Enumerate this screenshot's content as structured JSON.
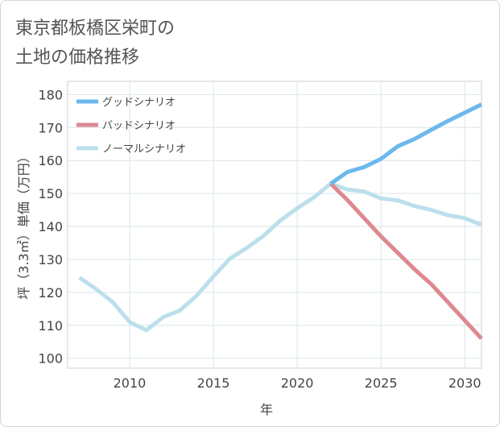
{
  "chart_data": {
    "type": "line",
    "title_lines": [
      "東京都板橋区栄町の",
      "土地の価格推移"
    ],
    "xlabel": "年",
    "ylabel": "坪（3.3㎡）単価（万円）",
    "xlim": [
      2006.3,
      2031
    ],
    "ylim": [
      97,
      184
    ],
    "x_ticks": [
      2010,
      2015,
      2020,
      2025,
      2030
    ],
    "y_ticks": [
      100,
      110,
      120,
      130,
      140,
      150,
      160,
      170,
      180
    ],
    "grid": true,
    "legend_position": "top-left",
    "series": [
      {
        "name": "グッドシナリオ",
        "color": "#6bb8ec",
        "x": [
          2022,
          2023,
          2024,
          2025,
          2026,
          2027,
          2028,
          2029,
          2030,
          2031
        ],
        "y": [
          153,
          156.5,
          158,
          160.5,
          164.3,
          166.5,
          169.3,
          172,
          174.5,
          177
        ]
      },
      {
        "name": "バッドシナリオ",
        "color": "#de8890",
        "x": [
          2022,
          2023,
          2024,
          2025,
          2026,
          2027,
          2028,
          2029,
          2030,
          2031
        ],
        "y": [
          153,
          148,
          142.5,
          137,
          132,
          127,
          122.5,
          117,
          111.5,
          106
        ]
      },
      {
        "name": "ノーマルシナリオ",
        "color": "#bcdfec",
        "x": [
          2007,
          2008,
          2009,
          2010,
          2011,
          2012,
          2013,
          2014,
          2015,
          2016,
          2017,
          2018,
          2019,
          2020,
          2021,
          2022,
          2023,
          2024,
          2025,
          2026,
          2027,
          2028,
          2029,
          2030,
          2031
        ],
        "y": [
          124.5,
          121,
          117,
          111,
          108.5,
          112.5,
          114.5,
          119,
          124.8,
          130.3,
          133.5,
          137.2,
          141.8,
          145.5,
          148.8,
          153,
          151.2,
          150.6,
          148.5,
          147.9,
          146.2,
          145,
          143.4,
          142.5,
          140.5
        ]
      }
    ]
  }
}
